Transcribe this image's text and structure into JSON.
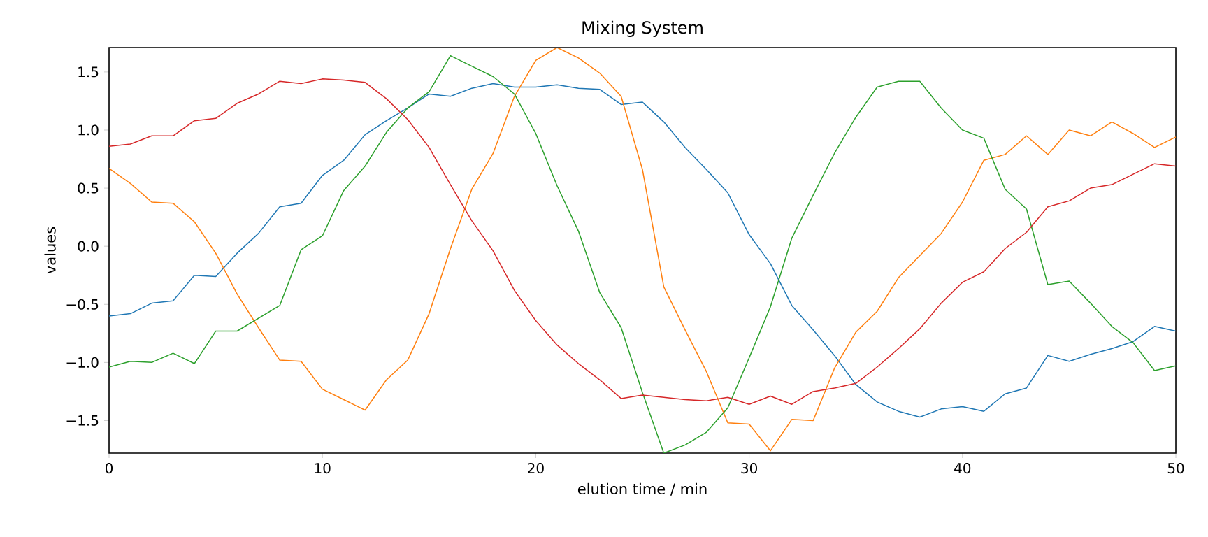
{
  "chart_data": {
    "type": "line",
    "title": "Mixing System",
    "xlabel": "elution time / min",
    "ylabel": "values",
    "x": [
      0,
      1,
      2,
      3,
      4,
      5,
      6,
      7,
      8,
      9,
      10,
      11,
      12,
      13,
      14,
      15,
      16,
      17,
      18,
      19,
      20,
      21,
      22,
      23,
      24,
      25,
      26,
      27,
      28,
      29,
      30,
      31,
      32,
      33,
      34,
      35,
      36,
      37,
      38,
      39,
      40,
      41,
      42,
      43,
      44,
      45,
      46,
      47,
      48,
      49,
      50
    ],
    "xlim": [
      0,
      50
    ],
    "xticks": [
      0,
      10,
      20,
      30,
      40,
      50
    ],
    "ylim": [
      -1.78,
      1.71
    ],
    "yticks": [
      {
        "value": -1.5,
        "label": "−1.5"
      },
      {
        "value": -1.0,
        "label": "−1.0"
      },
      {
        "value": -0.5,
        "label": "−0.5"
      },
      {
        "value": 0,
        "label": "0.0"
      },
      {
        "value": 0.5,
        "label": "0.5"
      },
      {
        "value": 1.0,
        "label": "1.0"
      },
      {
        "value": 1.5,
        "label": "1.5"
      }
    ],
    "series": [
      {
        "color": "#1f77b4",
        "values": [
          -0.6,
          -0.58,
          -0.49,
          -0.47,
          -0.25,
          -0.26,
          -0.06,
          0.11,
          0.34,
          0.37,
          0.61,
          0.74,
          0.96,
          1.08,
          1.19,
          1.31,
          1.29,
          1.36,
          1.4,
          1.37,
          1.37,
          1.39,
          1.36,
          1.35,
          1.22,
          1.24,
          1.07,
          0.85,
          0.66,
          0.46,
          0.1,
          -0.15,
          -0.51,
          -0.72,
          -0.94,
          -1.19,
          -1.34,
          -1.42,
          -1.47,
          -1.4,
          -1.38,
          -1.42,
          -1.27,
          -1.22,
          -0.94,
          -0.99,
          -0.93,
          -0.88,
          -0.82,
          -0.69,
          -0.73
        ]
      },
      {
        "color": "#ff7f0e",
        "values": [
          0.67,
          0.54,
          0.38,
          0.37,
          0.21,
          -0.06,
          -0.41,
          -0.7,
          -0.98,
          -0.99,
          -1.23,
          -1.32,
          -1.41,
          -1.15,
          -0.98,
          -0.58,
          -0.02,
          0.49,
          0.8,
          1.29,
          1.6,
          1.71,
          1.62,
          1.49,
          1.29,
          0.66,
          -0.35,
          -0.72,
          -1.08,
          -1.52,
          -1.53,
          -1.76,
          -1.49,
          -1.5,
          -1.05,
          -0.74,
          -0.56,
          -0.27,
          -0.08,
          0.11,
          0.38,
          0.74,
          0.79,
          0.95,
          0.79,
          1.0,
          0.95,
          1.07,
          0.97,
          0.85,
          0.94
        ]
      },
      {
        "color": "#2ca02c",
        "values": [
          -1.04,
          -0.99,
          -1.0,
          -0.92,
          -1.01,
          -0.73,
          -0.73,
          -0.62,
          -0.51,
          -0.03,
          0.09,
          0.48,
          0.69,
          0.98,
          1.19,
          1.33,
          1.64,
          1.55,
          1.46,
          1.31,
          0.97,
          0.52,
          0.13,
          -0.4,
          -0.7,
          -1.26,
          -1.78,
          -1.71,
          -1.6,
          -1.39,
          -0.96,
          -0.52,
          0.07,
          0.44,
          0.8,
          1.11,
          1.37,
          1.42,
          1.42,
          1.19,
          1.0,
          0.93,
          0.49,
          0.32,
          -0.33,
          -0.3,
          -0.49,
          -0.69,
          -0.83,
          -1.07,
          -1.03
        ]
      },
      {
        "color": "#d62728",
        "values": [
          0.86,
          0.88,
          0.95,
          0.95,
          1.08,
          1.1,
          1.23,
          1.31,
          1.42,
          1.4,
          1.44,
          1.43,
          1.41,
          1.27,
          1.09,
          0.85,
          0.53,
          0.22,
          -0.04,
          -0.38,
          -0.64,
          -0.85,
          -1.01,
          -1.15,
          -1.31,
          -1.28,
          -1.3,
          -1.32,
          -1.33,
          -1.3,
          -1.36,
          -1.29,
          -1.36,
          -1.25,
          -1.22,
          -1.18,
          -1.04,
          -0.88,
          -0.71,
          -0.49,
          -0.31,
          -0.22,
          -0.02,
          0.12,
          0.34,
          0.39,
          0.5,
          0.53,
          0.62,
          0.71,
          0.69
        ]
      }
    ]
  }
}
